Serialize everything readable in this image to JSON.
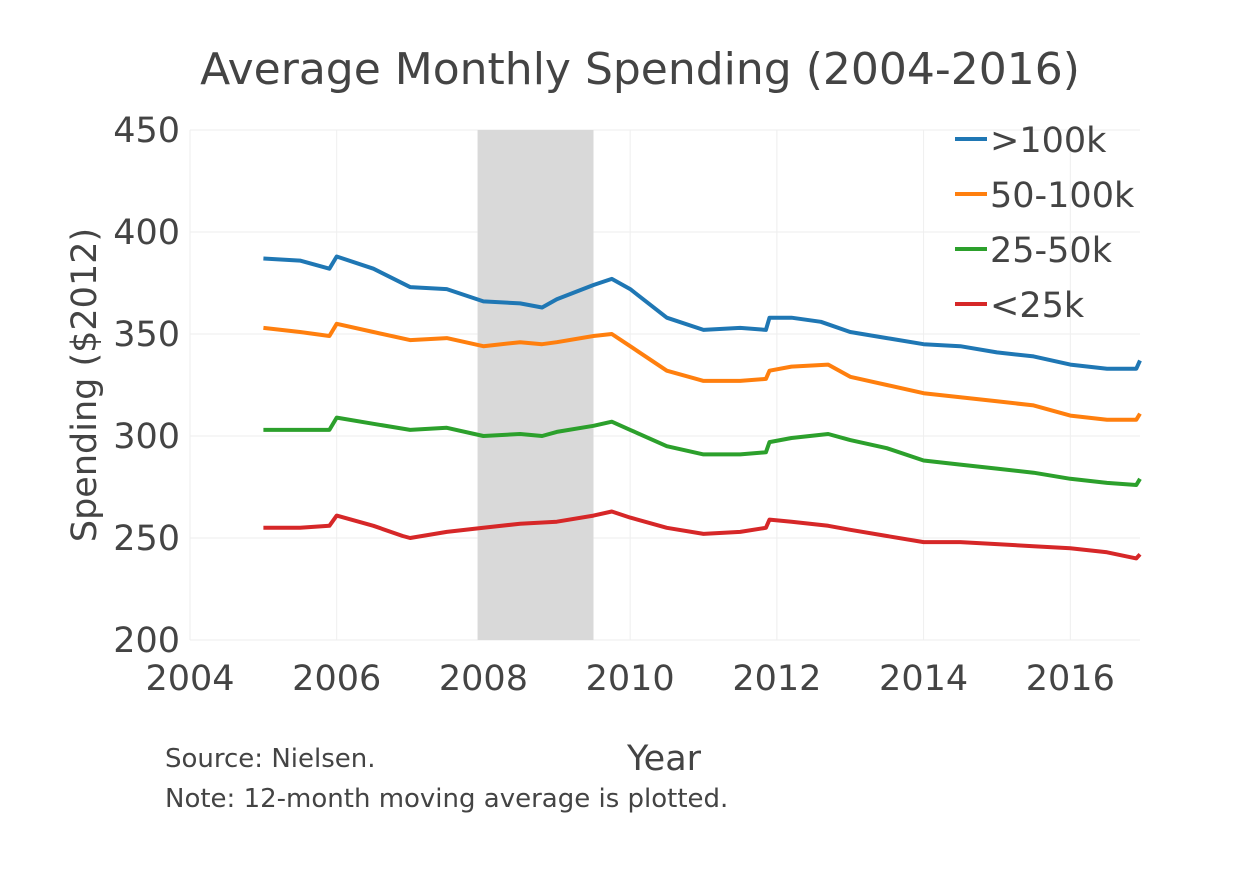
{
  "chart_data": {
    "type": "line",
    "title": "Average Monthly Spending (2004-2016)",
    "xlabel": "Year",
    "ylabel": "Spending ($2012)",
    "xlim": [
      2004,
      2016.95
    ],
    "ylim": [
      200,
      450
    ],
    "xticks": [
      2004,
      2006,
      2008,
      2010,
      2012,
      2014,
      2016
    ],
    "yticks": [
      200,
      250,
      300,
      350,
      400,
      450
    ],
    "grid": true,
    "legend_position": "top-right",
    "recession_shading": {
      "start": 2007.92,
      "end": 2009.5,
      "color": "#d9d9d9"
    },
    "notes": [
      "Source: Nielsen.",
      "Note: 12-month moving average is plotted."
    ],
    "series": [
      {
        "name": ">100k",
        "color": "#1f77b4",
        "x": [
          2005.0,
          2005.5,
          2005.9,
          2006.0,
          2006.5,
          2007.0,
          2007.5,
          2008.0,
          2008.5,
          2008.8,
          2009.0,
          2009.5,
          2009.75,
          2010.0,
          2010.5,
          2011.0,
          2011.5,
          2011.85,
          2011.9,
          2012.2,
          2012.6,
          2013.0,
          2013.5,
          2014.0,
          2014.5,
          2015.0,
          2015.5,
          2016.0,
          2016.5,
          2016.9,
          2016.95
        ],
        "values": [
          387,
          386,
          382,
          388,
          382,
          373,
          372,
          366,
          365,
          363,
          367,
          374,
          377,
          372,
          358,
          352,
          353,
          352,
          358,
          358,
          356,
          351,
          348,
          345,
          344,
          341,
          339,
          335,
          333,
          333,
          337
        ]
      },
      {
        "name": "50-100k",
        "color": "#ff7f0e",
        "x": [
          2005.0,
          2005.5,
          2005.9,
          2006.0,
          2006.5,
          2007.0,
          2007.5,
          2008.0,
          2008.5,
          2008.8,
          2009.0,
          2009.5,
          2009.75,
          2010.0,
          2010.5,
          2011.0,
          2011.5,
          2011.85,
          2011.9,
          2012.2,
          2012.7,
          2013.0,
          2013.5,
          2014.0,
          2014.5,
          2015.0,
          2015.5,
          2016.0,
          2016.5,
          2016.9,
          2016.95
        ],
        "values": [
          353,
          351,
          349,
          355,
          351,
          347,
          348,
          344,
          346,
          345,
          346,
          349,
          350,
          344,
          332,
          327,
          327,
          328,
          332,
          334,
          335,
          329,
          325,
          321,
          319,
          317,
          315,
          310,
          308,
          308,
          311
        ]
      },
      {
        "name": "25-50k",
        "color": "#2ca02c",
        "x": [
          2005.0,
          2005.5,
          2005.9,
          2006.0,
          2006.5,
          2007.0,
          2007.5,
          2008.0,
          2008.5,
          2008.8,
          2009.0,
          2009.5,
          2009.75,
          2010.0,
          2010.5,
          2011.0,
          2011.5,
          2011.85,
          2011.9,
          2012.2,
          2012.7,
          2013.0,
          2013.5,
          2014.0,
          2014.5,
          2015.0,
          2015.5,
          2016.0,
          2016.5,
          2016.9,
          2016.95
        ],
        "values": [
          303,
          303,
          303,
          309,
          306,
          303,
          304,
          300,
          301,
          300,
          302,
          305,
          307,
          303,
          295,
          291,
          291,
          292,
          297,
          299,
          301,
          298,
          294,
          288,
          286,
          284,
          282,
          279,
          277,
          276,
          279
        ]
      },
      {
        "name": "<25k",
        "color": "#d62728",
        "x": [
          2005.0,
          2005.5,
          2005.9,
          2006.0,
          2006.5,
          2006.9,
          2007.0,
          2007.5,
          2008.0,
          2008.5,
          2009.0,
          2009.5,
          2009.75,
          2010.0,
          2010.5,
          2011.0,
          2011.5,
          2011.85,
          2011.9,
          2012.2,
          2012.7,
          2013.0,
          2013.5,
          2014.0,
          2014.5,
          2015.0,
          2015.5,
          2016.0,
          2016.5,
          2016.9,
          2016.95
        ],
        "values": [
          255,
          255,
          256,
          261,
          256,
          251,
          250,
          253,
          255,
          257,
          258,
          261,
          263,
          260,
          255,
          252,
          253,
          255,
          259,
          258,
          256,
          254,
          251,
          248,
          248,
          247,
          246,
          245,
          243,
          240,
          242
        ]
      }
    ]
  }
}
